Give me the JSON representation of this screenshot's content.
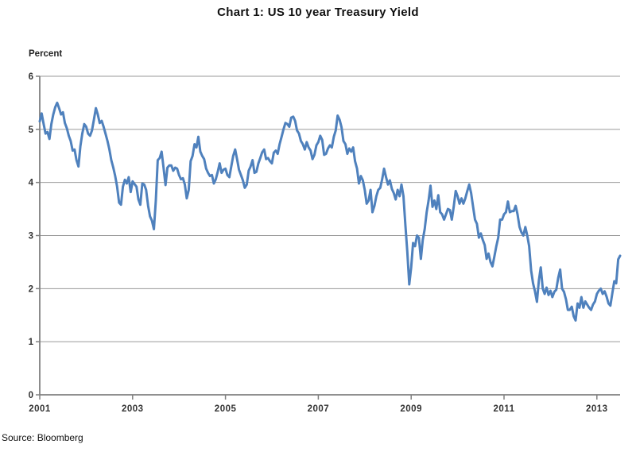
{
  "title": "Chart 1: US 10 year Treasury Yield",
  "y_axis_title": "Percent",
  "source": "Source: Bloomberg",
  "colors": {
    "line": "#4F81BD",
    "gridline": "#9a9a9a",
    "axis": "#808080",
    "tick_label": "#333333",
    "background": "#ffffff"
  },
  "chart_data": {
    "type": "line",
    "title": "Chart 1: US 10 year Treasury Yield",
    "ylabel": "Percent",
    "xlabel": "",
    "series_name": "US 10 year Treasury yield (percent)",
    "legend": "none",
    "grid": "horizontal",
    "ylim": [
      0,
      6
    ],
    "xlim": [
      2001,
      2013.5
    ],
    "y_ticks": [
      0,
      1,
      2,
      3,
      4,
      5,
      6
    ],
    "x_ticks": [
      2001,
      2003,
      2005,
      2007,
      2009,
      2011,
      2013
    ],
    "x_start_year": 2001,
    "points_per_year": 24,
    "values": [
      5.15,
      5.3,
      5.1,
      4.92,
      4.95,
      4.82,
      5.1,
      5.28,
      5.42,
      5.5,
      5.4,
      5.28,
      5.32,
      5.12,
      5.02,
      4.88,
      4.78,
      4.6,
      4.62,
      4.42,
      4.3,
      4.68,
      4.92,
      5.1,
      5.05,
      4.92,
      4.88,
      4.98,
      5.18,
      5.4,
      5.28,
      5.12,
      5.16,
      5.05,
      4.92,
      4.78,
      4.62,
      4.42,
      4.28,
      4.12,
      3.92,
      3.62,
      3.58,
      3.92,
      4.05,
      3.98,
      4.1,
      3.82,
      4.02,
      3.97,
      3.92,
      3.68,
      3.58,
      3.98,
      3.96,
      3.86,
      3.56,
      3.36,
      3.28,
      3.12,
      3.66,
      4.42,
      4.46,
      4.58,
      4.28,
      3.95,
      4.28,
      4.32,
      4.32,
      4.22,
      4.28,
      4.26,
      4.14,
      4.06,
      4.08,
      3.96,
      3.7,
      3.86,
      4.4,
      4.5,
      4.72,
      4.66,
      4.86,
      4.58,
      4.5,
      4.44,
      4.26,
      4.18,
      4.12,
      4.14,
      3.98,
      4.06,
      4.2,
      4.36,
      4.18,
      4.24,
      4.26,
      4.14,
      4.1,
      4.3,
      4.5,
      4.62,
      4.44,
      4.24,
      4.14,
      4.04,
      3.9,
      3.96,
      4.22,
      4.3,
      4.42,
      4.18,
      4.2,
      4.36,
      4.46,
      4.57,
      4.62,
      4.44,
      4.46,
      4.4,
      4.36,
      4.56,
      4.6,
      4.54,
      4.72,
      4.86,
      5.0,
      5.12,
      5.1,
      5.05,
      5.22,
      5.24,
      5.16,
      4.98,
      4.92,
      4.78,
      4.72,
      4.62,
      4.76,
      4.66,
      4.6,
      4.44,
      4.52,
      4.7,
      4.76,
      4.88,
      4.8,
      4.52,
      4.54,
      4.64,
      4.7,
      4.66,
      4.86,
      4.98,
      5.26,
      5.18,
      5.04,
      4.78,
      4.72,
      4.54,
      4.64,
      4.58,
      4.66,
      4.4,
      4.26,
      3.98,
      4.12,
      4.04,
      3.86,
      3.6,
      3.66,
      3.86,
      3.44,
      3.56,
      3.74,
      3.86,
      3.9,
      4.06,
      4.26,
      4.1,
      3.96,
      4.04,
      3.88,
      3.8,
      3.68,
      3.86,
      3.74,
      3.96,
      3.74,
      3.2,
      2.7,
      2.08,
      2.4,
      2.86,
      2.8,
      3.0,
      2.96,
      2.56,
      2.92,
      3.12,
      3.44,
      3.66,
      3.94,
      3.54,
      3.66,
      3.5,
      3.76,
      3.44,
      3.4,
      3.3,
      3.4,
      3.5,
      3.48,
      3.3,
      3.54,
      3.84,
      3.74,
      3.6,
      3.7,
      3.6,
      3.7,
      3.84,
      3.96,
      3.8,
      3.54,
      3.3,
      3.22,
      2.96,
      3.04,
      2.92,
      2.82,
      2.56,
      2.66,
      2.5,
      2.42,
      2.6,
      2.8,
      2.96,
      3.3,
      3.3,
      3.4,
      3.44,
      3.64,
      3.44,
      3.46,
      3.46,
      3.56,
      3.4,
      3.16,
      3.06,
      3.0,
      3.16,
      3.0,
      2.8,
      2.34,
      2.1,
      1.95,
      1.75,
      2.15,
      2.4,
      2.0,
      1.9,
      2.02,
      1.88,
      1.96,
      1.84,
      1.94,
      1.98,
      2.2,
      2.36,
      2.0,
      1.94,
      1.8,
      1.6,
      1.6,
      1.66,
      1.48,
      1.4,
      1.72,
      1.64,
      1.84,
      1.64,
      1.76,
      1.7,
      1.64,
      1.6,
      1.7,
      1.76,
      1.9,
      1.96,
      2.0,
      1.9,
      1.95,
      1.85,
      1.72,
      1.68,
      1.92,
      2.14,
      2.1,
      2.55,
      2.62
    ]
  }
}
